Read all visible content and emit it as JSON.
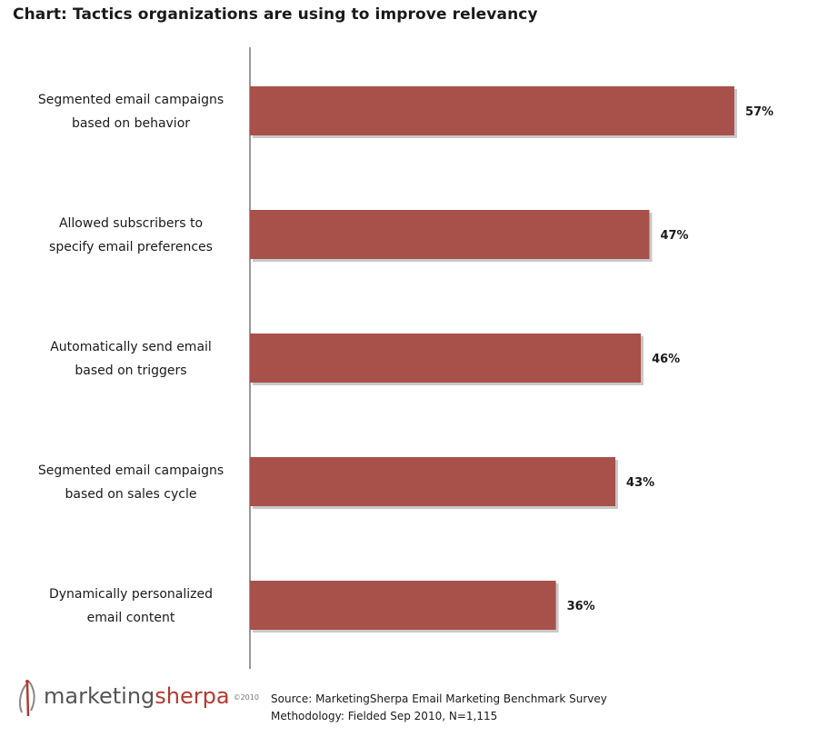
{
  "chart_data": {
    "type": "bar",
    "orientation": "horizontal",
    "title": "Chart: Tactics organizations are using to improve relevancy",
    "categories": [
      [
        "Segmented email campaigns",
        "based on behavior"
      ],
      [
        "Allowed subscribers to",
        "specify email preferences"
      ],
      [
        "Automatically send email",
        "based on triggers"
      ],
      [
        "Segmented email campaigns",
        "based on sales cycle"
      ],
      [
        "Dynamically personalized",
        "email content"
      ]
    ],
    "values": [
      57,
      47,
      46,
      43,
      36
    ],
    "value_labels": [
      "57%",
      "47%",
      "46%",
      "43%",
      "36%"
    ],
    "unit": "%",
    "xlim": [
      0,
      100
    ],
    "grid": false,
    "legend": "none",
    "colors": {
      "bar": "#a8504a",
      "bar_shadow": "#c9c9c9",
      "axis": "#555555"
    }
  },
  "footer": {
    "logo": {
      "part1": "marketing",
      "part2": "sherpa",
      "year": "©2010"
    },
    "source": "Source: MarketingSherpa Email Marketing Benchmark Survey",
    "methodology": "Methodology: Fielded Sep 2010, N=1,115"
  }
}
